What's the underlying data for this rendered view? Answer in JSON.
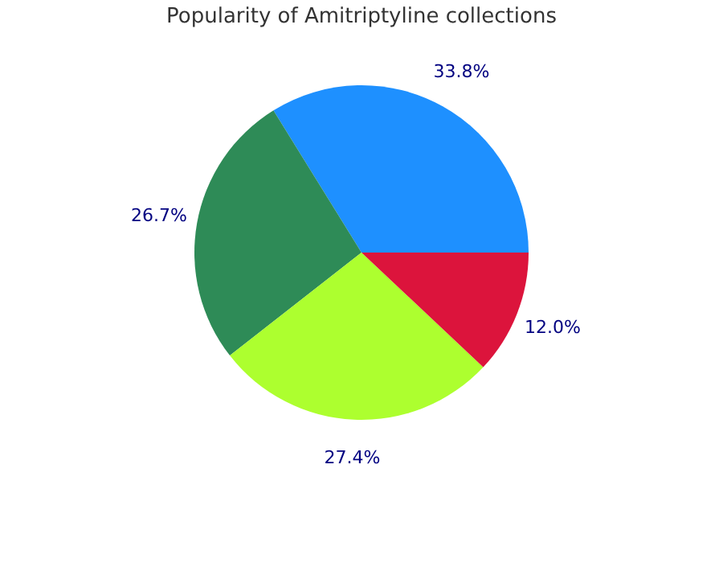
{
  "chart_data": {
    "type": "pie",
    "title": "Popularity of Amitriptyline collections",
    "categories": [
      null,
      null,
      null,
      null
    ],
    "values": [
      33.8,
      26.7,
      27.4,
      12.0
    ],
    "colors": [
      "#1e90ff",
      "#2e8b57",
      "#adff2f",
      "#dc143c"
    ],
    "value_labels": [
      "33.8%",
      "26.7%",
      "27.4%",
      "12.0%"
    ]
  }
}
